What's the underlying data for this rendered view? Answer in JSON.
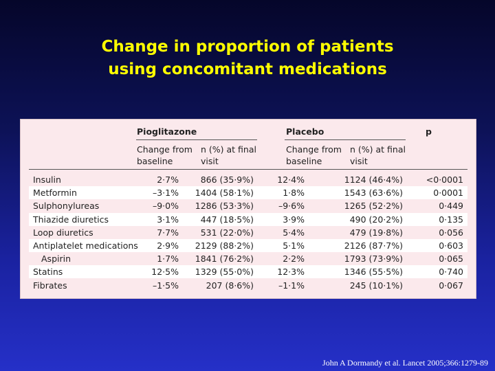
{
  "title_line1": "Change in proportion of patients",
  "title_line2": "using concomitant medications",
  "table": {
    "group_pio": "Pioglitazone",
    "group_placebo": "Placebo",
    "group_p": "p",
    "sub_change": "Change from baseline",
    "sub_n": "n (%) at final visit",
    "rows": [
      {
        "name": "Insulin",
        "pio_change": "2·7%",
        "pio_n": "866 (35·9%)",
        "plc_change": "12·4%",
        "plc_n": "1124 (46·4%)",
        "p": "<0·0001"
      },
      {
        "name": "Metformin",
        "pio_change": "–3·1%",
        "pio_n": "1404 (58·1%)",
        "plc_change": "1·8%",
        "plc_n": "1543 (63·6%)",
        "p": "0·0001"
      },
      {
        "name": "Sulphonylureas",
        "pio_change": "–9·0%",
        "pio_n": "1286 (53·3%)",
        "plc_change": "–9·6%",
        "plc_n": "1265 (52·2%)",
        "p": "0·449"
      },
      {
        "name": "Thiazide diuretics",
        "pio_change": "3·1%",
        "pio_n": "447 (18·5%)",
        "plc_change": "3·9%",
        "plc_n": "490 (20·2%)",
        "p": "0·135"
      },
      {
        "name": "Loop diuretics",
        "pio_change": "7·7%",
        "pio_n": "531 (22·0%)",
        "plc_change": "5·4%",
        "plc_n": "479 (19·8%)",
        "p": "0·056"
      },
      {
        "name": "Antiplatelet medications",
        "pio_change": "2·9%",
        "pio_n": "2129 (88·2%)",
        "plc_change": "5·1%",
        "plc_n": "2126 (87·7%)",
        "p": "0·603"
      },
      {
        "name": "Aspirin",
        "pio_change": "1·7%",
        "pio_n": "1841 (76·2%)",
        "plc_change": "2·2%",
        "plc_n": "1793 (73·9%)",
        "p": "0·065"
      },
      {
        "name": "Statins",
        "pio_change": "12·5%",
        "pio_n": "1329 (55·0%)",
        "plc_change": "12·3%",
        "plc_n": "1346 (55·5%)",
        "p": "0·740"
      },
      {
        "name": "Fibrates",
        "pio_change": "–1·5%",
        "pio_n": "207 (8·6%)",
        "plc_change": "–1·1%",
        "plc_n": "245 (10·1%)",
        "p": "0·067"
      }
    ]
  },
  "citation": "John A Dormandy et al. Lancet 2005;366:1279-89"
}
